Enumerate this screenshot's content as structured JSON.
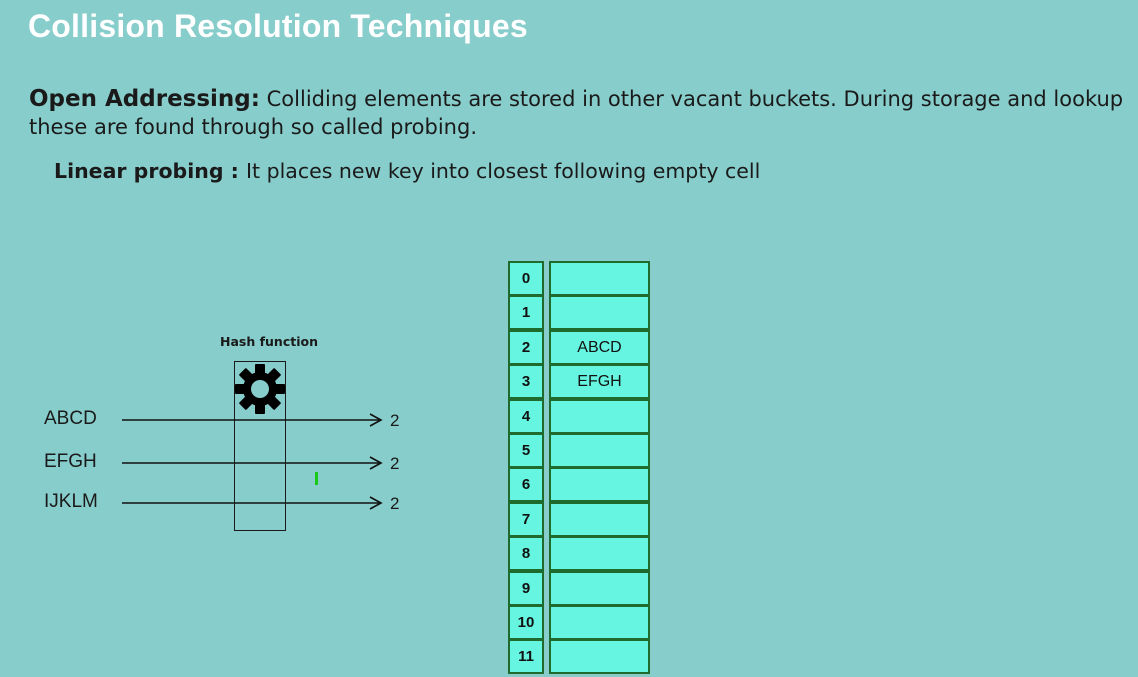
{
  "slide": {
    "title": "Collision Resolution Techniques",
    "open_addressing": {
      "term": "Open Addressing:",
      "text": " Colliding elements are stored in other vacant buckets. During storage and lookup these are found through so called probing."
    },
    "linear_probing": {
      "term": "Linear probing : ",
      "text": " It places new key into closest following empty cell"
    }
  },
  "diagram": {
    "hash_function_label": "Hash function",
    "gear_icon": "gear-icon",
    "keys": [
      {
        "key": "ABCD",
        "hash": "2"
      },
      {
        "key": "EFGH",
        "hash": "2"
      },
      {
        "key": "IJKLM",
        "hash": "2"
      }
    ]
  },
  "table": {
    "rows": [
      {
        "index": "0",
        "value": ""
      },
      {
        "index": "1",
        "value": ""
      },
      {
        "index": "2",
        "value": "ABCD"
      },
      {
        "index": "3",
        "value": "EFGH"
      },
      {
        "index": "4",
        "value": ""
      },
      {
        "index": "5",
        "value": ""
      },
      {
        "index": "6",
        "value": ""
      },
      {
        "index": "7",
        "value": ""
      },
      {
        "index": "8",
        "value": ""
      },
      {
        "index": "9",
        "value": ""
      },
      {
        "index": "10",
        "value": ""
      },
      {
        "index": "11",
        "value": ""
      }
    ]
  },
  "colors": {
    "background": "#87cdcb",
    "cell_fill": "#66f5e0",
    "cell_border": "#1f6b2e",
    "title": "#ffffff"
  }
}
